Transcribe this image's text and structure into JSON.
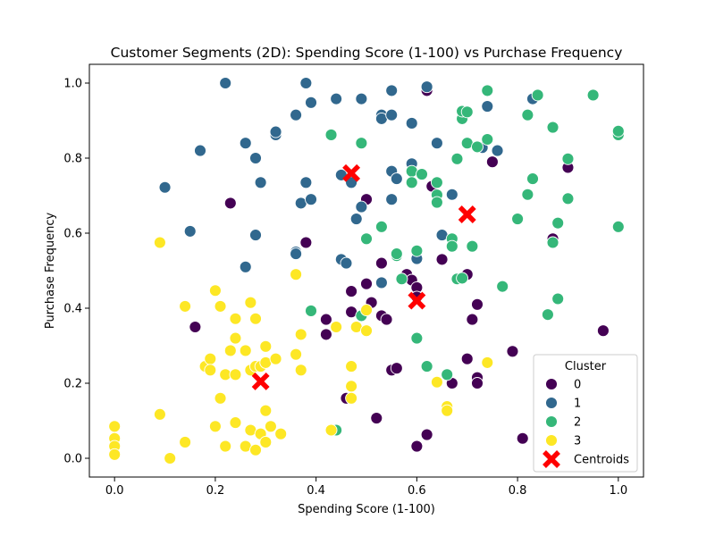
{
  "chart_data": {
    "type": "scatter",
    "title": "Customer Segments (2D): Spending Score (1-100) vs Purchase Frequency",
    "xlabel": "Spending Score (1-100)",
    "ylabel": "Purchase Frequency",
    "xlim": [
      -0.05,
      1.05
    ],
    "ylim": [
      -0.05,
      1.05
    ],
    "xticks": [
      "0.0",
      "0.2",
      "0.4",
      "0.6",
      "0.8",
      "1.0"
    ],
    "yticks": [
      "0.0",
      "0.2",
      "0.4",
      "0.6",
      "0.8",
      "1.0"
    ],
    "grid": false,
    "legend": {
      "title": "Cluster",
      "placement": "lower-right",
      "entries": [
        "0",
        "1",
        "2",
        "3",
        "Centroids"
      ]
    },
    "colors": {
      "0": "#440154",
      "1": "#31688e",
      "2": "#35b779",
      "3": "#fde725",
      "centroid": "#ff0000"
    },
    "series": [
      {
        "name": "0",
        "points": [
          [
            0.23,
            0.68
          ],
          [
            0.38,
            0.575
          ],
          [
            0.16,
            0.35
          ],
          [
            0.42,
            0.37
          ],
          [
            0.42,
            0.33
          ],
          [
            0.47,
            0.445
          ],
          [
            0.47,
            0.39
          ],
          [
            0.5,
            0.69
          ],
          [
            0.5,
            0.465
          ],
          [
            0.51,
            0.415
          ],
          [
            0.53,
            0.52
          ],
          [
            0.53,
            0.38
          ],
          [
            0.54,
            0.37
          ],
          [
            0.55,
            0.235
          ],
          [
            0.56,
            0.24
          ],
          [
            0.58,
            0.49
          ],
          [
            0.59,
            0.785
          ],
          [
            0.59,
            0.475
          ],
          [
            0.6,
            0.55
          ],
          [
            0.6,
            0.455
          ],
          [
            0.6,
            0.43
          ],
          [
            0.62,
            0.98
          ],
          [
            0.63,
            0.725
          ],
          [
            0.65,
            0.53
          ],
          [
            0.67,
            0.2
          ],
          [
            0.7,
            0.265
          ],
          [
            0.7,
            0.49
          ],
          [
            0.71,
            0.37
          ],
          [
            0.72,
            0.41
          ],
          [
            0.72,
            0.215
          ],
          [
            0.72,
            0.2
          ],
          [
            0.75,
            0.79
          ],
          [
            0.79,
            0.285
          ],
          [
            0.81,
            0.053
          ],
          [
            0.87,
            0.585
          ],
          [
            0.9,
            0.775
          ],
          [
            0.97,
            0.34
          ],
          [
            0.46,
            0.16
          ],
          [
            0.52,
            0.107
          ],
          [
            0.6,
            0.032
          ],
          [
            0.62,
            0.063
          ]
        ]
      },
      {
        "name": "1",
        "points": [
          [
            0.1,
            0.722
          ],
          [
            0.15,
            0.605
          ],
          [
            0.17,
            0.82
          ],
          [
            0.22,
            1.0
          ],
          [
            0.26,
            0.84
          ],
          [
            0.26,
            0.51
          ],
          [
            0.28,
            0.8
          ],
          [
            0.28,
            0.595
          ],
          [
            0.29,
            0.735
          ],
          [
            0.32,
            0.862
          ],
          [
            0.32,
            0.87
          ],
          [
            0.36,
            0.915
          ],
          [
            0.36,
            0.55
          ],
          [
            0.36,
            0.545
          ],
          [
            0.37,
            0.68
          ],
          [
            0.38,
            1.0
          ],
          [
            0.38,
            0.735
          ],
          [
            0.39,
            0.948
          ],
          [
            0.39,
            0.69
          ],
          [
            0.44,
            0.958
          ],
          [
            0.45,
            0.755
          ],
          [
            0.45,
            0.53
          ],
          [
            0.46,
            0.52
          ],
          [
            0.47,
            0.735
          ],
          [
            0.48,
            0.638
          ],
          [
            0.49,
            0.67
          ],
          [
            0.49,
            0.958
          ],
          [
            0.53,
            0.915
          ],
          [
            0.53,
            0.905
          ],
          [
            0.55,
            0.98
          ],
          [
            0.55,
            0.765
          ],
          [
            0.55,
            0.69
          ],
          [
            0.55,
            0.915
          ],
          [
            0.56,
            0.745
          ],
          [
            0.59,
            0.785
          ],
          [
            0.59,
            0.893
          ],
          [
            0.6,
            0.532
          ],
          [
            0.62,
            0.99
          ],
          [
            0.64,
            0.84
          ],
          [
            0.65,
            0.595
          ],
          [
            0.67,
            0.703
          ],
          [
            0.73,
            0.828
          ],
          [
            0.74,
            0.938
          ],
          [
            0.76,
            0.82
          ],
          [
            0.83,
            0.958
          ],
          [
            0.53,
            0.468
          ]
        ]
      },
      {
        "name": "2",
        "points": [
          [
            0.43,
            0.862
          ],
          [
            0.39,
            0.393
          ],
          [
            0.49,
            0.84
          ],
          [
            0.49,
            0.38
          ],
          [
            0.5,
            0.585
          ],
          [
            0.53,
            0.617
          ],
          [
            0.56,
            0.54
          ],
          [
            0.57,
            0.478
          ],
          [
            0.59,
            0.765
          ],
          [
            0.59,
            0.735
          ],
          [
            0.6,
            0.553
          ],
          [
            0.6,
            0.32
          ],
          [
            0.61,
            0.757
          ],
          [
            0.62,
            0.245
          ],
          [
            0.64,
            0.735
          ],
          [
            0.64,
            0.702
          ],
          [
            0.64,
            0.682
          ],
          [
            0.66,
            0.223
          ],
          [
            0.67,
            0.585
          ],
          [
            0.67,
            0.565
          ],
          [
            0.68,
            0.478
          ],
          [
            0.68,
            0.798
          ],
          [
            0.69,
            0.48
          ],
          [
            0.69,
            0.905
          ],
          [
            0.69,
            0.925
          ],
          [
            0.7,
            0.923
          ],
          [
            0.7,
            0.84
          ],
          [
            0.71,
            0.565
          ],
          [
            0.72,
            0.83
          ],
          [
            0.74,
            0.98
          ],
          [
            0.74,
            0.85
          ],
          [
            0.77,
            0.458
          ],
          [
            0.8,
            0.638
          ],
          [
            0.82,
            0.703
          ],
          [
            0.82,
            0.915
          ],
          [
            0.83,
            0.745
          ],
          [
            0.84,
            0.968
          ],
          [
            0.86,
            0.383
          ],
          [
            0.87,
            0.882
          ],
          [
            0.87,
            0.575
          ],
          [
            0.88,
            0.627
          ],
          [
            0.88,
            0.425
          ],
          [
            0.9,
            0.798
          ],
          [
            0.9,
            0.692
          ],
          [
            0.95,
            0.968
          ],
          [
            1.0,
            0.862
          ],
          [
            1.0,
            0.872
          ],
          [
            1.0,
            0.617
          ],
          [
            0.44,
            0.075
          ],
          [
            0.56,
            0.545
          ]
        ]
      },
      {
        "name": "3",
        "points": [
          [
            0.0,
            0.085
          ],
          [
            0.0,
            0.053
          ],
          [
            0.0,
            0.032
          ],
          [
            0.0,
            0.01
          ],
          [
            0.09,
            0.575
          ],
          [
            0.09,
            0.117
          ],
          [
            0.11,
            0.0
          ],
          [
            0.14,
            0.405
          ],
          [
            0.14,
            0.043
          ],
          [
            0.18,
            0.245
          ],
          [
            0.19,
            0.265
          ],
          [
            0.19,
            0.235
          ],
          [
            0.2,
            0.085
          ],
          [
            0.2,
            0.447
          ],
          [
            0.21,
            0.405
          ],
          [
            0.21,
            0.16
          ],
          [
            0.22,
            0.032
          ],
          [
            0.22,
            0.223
          ],
          [
            0.23,
            0.287
          ],
          [
            0.24,
            0.372
          ],
          [
            0.24,
            0.223
          ],
          [
            0.24,
            0.095
          ],
          [
            0.24,
            0.32
          ],
          [
            0.26,
            0.287
          ],
          [
            0.26,
            0.032
          ],
          [
            0.27,
            0.415
          ],
          [
            0.27,
            0.235
          ],
          [
            0.27,
            0.075
          ],
          [
            0.28,
            0.245
          ],
          [
            0.28,
            0.022
          ],
          [
            0.28,
            0.372
          ],
          [
            0.29,
            0.245
          ],
          [
            0.29,
            0.065
          ],
          [
            0.3,
            0.043
          ],
          [
            0.3,
            0.255
          ],
          [
            0.3,
            0.127
          ],
          [
            0.3,
            0.298
          ],
          [
            0.31,
            0.085
          ],
          [
            0.32,
            0.265
          ],
          [
            0.33,
            0.065
          ],
          [
            0.36,
            0.49
          ],
          [
            0.36,
            0.277
          ],
          [
            0.37,
            0.33
          ],
          [
            0.37,
            0.235
          ],
          [
            0.43,
            0.075
          ],
          [
            0.47,
            0.192
          ],
          [
            0.47,
            0.245
          ],
          [
            0.47,
            0.16
          ],
          [
            0.48,
            0.35
          ],
          [
            0.5,
            0.395
          ],
          [
            0.5,
            0.34
          ],
          [
            0.64,
            0.203
          ],
          [
            0.66,
            0.138
          ],
          [
            0.66,
            0.127
          ],
          [
            0.74,
            0.255
          ],
          [
            0.44,
            0.35
          ]
        ]
      }
    ],
    "centroids": [
      [
        0.47,
        0.76
      ],
      [
        0.7,
        0.65
      ],
      [
        0.6,
        0.42
      ],
      [
        0.29,
        0.205
      ]
    ]
  }
}
